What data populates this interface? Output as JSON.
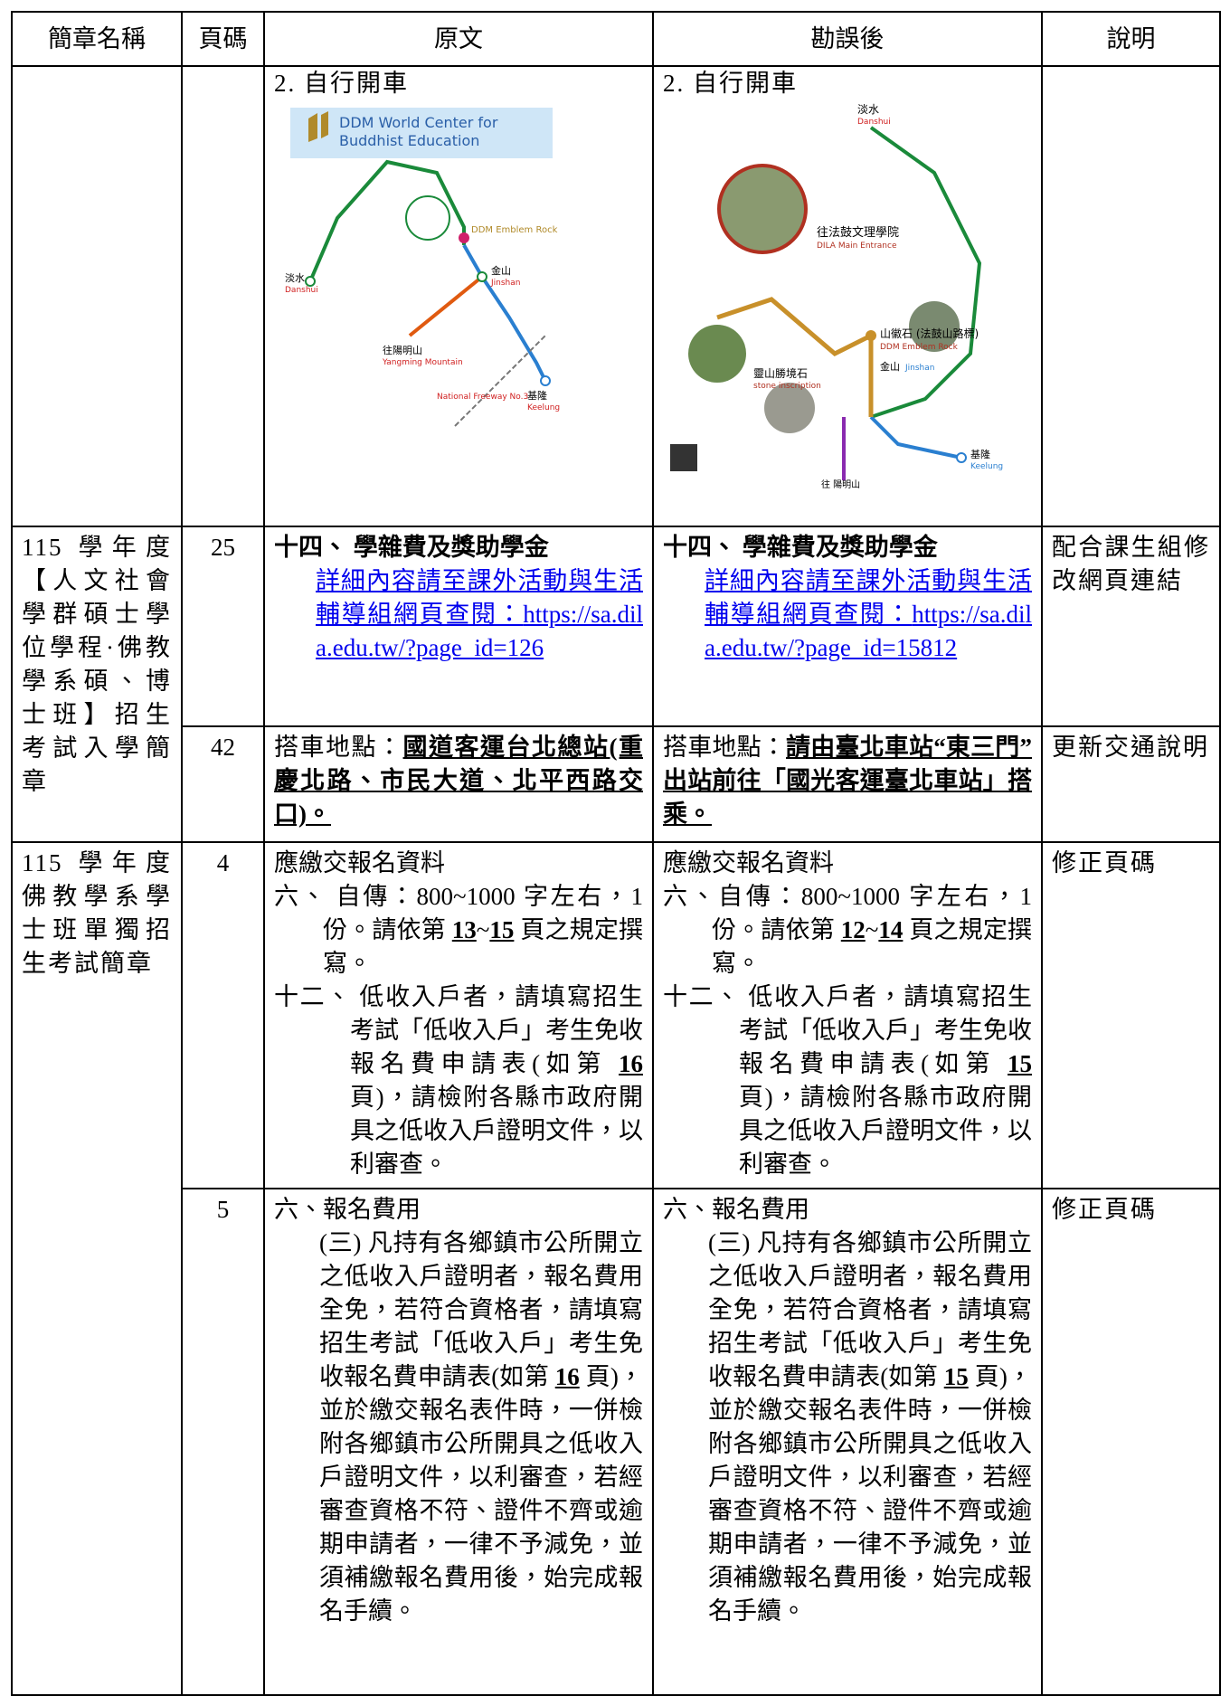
{
  "table": {
    "header": [
      "簡章名稱",
      "頁碼",
      "原文",
      "勘誤後",
      "說明"
    ],
    "rows": [
      {
        "original": {
          "heading": "2. 自行開車",
          "map": {
            "title": [
              "DDM World Center for",
              "Buddhist Education"
            ],
            "labels": [
              "淡水",
              "Danshui",
              "金山",
              "Jinshan",
              "基隆",
              "Keelung",
              "往陽明山",
              "Yangming Mountain",
              "DDM Emblem Rock",
              "National Freeway No.3"
            ]
          }
        },
        "revised": {
          "heading": "2. 自行開車",
          "map": {
            "labels": [
              "淡水",
              "Danshui",
              "往法鼓文理學院",
              "DILA Main Entrance",
              "山徽石 (法鼓山路標)",
              "DDM Emblem Rock",
              "金山",
              "Jinshan",
              "靈山勝境石",
              "stone inscription",
              "基隆",
              "Keelung",
              "往 陽明山"
            ]
          }
        }
      },
      {
        "chapter": "115 學年度【人文社會學群碩士學位學程·佛教學系碩、博士班】招生考試入學簡章",
        "page": "25",
        "original": {
          "heading": "十四、 學雜費及獎助學金",
          "link_text": "詳細內容請至課外活動與生活輔導組網頁查閱：",
          "url": "https://sa.dila.edu.tw/?page_id=126"
        },
        "revised": {
          "heading": "十四、 學雜費及獎助學金",
          "link_text": "詳細內容請至課外活動與生活輔導組網頁查閱：",
          "url": "https://sa.dila.edu.tw/?page_id=15812"
        },
        "note": "配合課生組修改網頁連結"
      },
      {
        "page": "42",
        "original": {
          "parts": [
            "搭車地點：",
            "國道客運台北總站(重慶北路、市民大道、北平西路交口)。"
          ]
        },
        "revised": {
          "parts": [
            "搭車地點：",
            "請由臺北車站“東三門”出站前往「國光客運臺北車站」搭乘。"
          ]
        },
        "note": "更新交通說明"
      },
      {
        "chapter": "115 學年度佛教學系學士班單獨招生考試簡章",
        "page": "4",
        "original": {
          "heading": "應繳交報名資料",
          "item1": [
            "六、",
            "自傳：800~1000 字左右，1 份。請依第 ",
            "13",
            "~",
            "15",
            " 頁之規定撰寫。"
          ],
          "item2": [
            "十二、",
            "低收入戶者，請填寫招生考試「低收入戶」考生免收報名費申請表(如第 ",
            "16",
            " 頁)，請檢附各縣市政府開具之低收入戶證明文件，以利審查。"
          ]
        },
        "revised": {
          "heading": "應繳交報名資料",
          "item1": [
            "六、",
            "自傳：800~1000 字左右，1 份。請依第 ",
            "12",
            "~",
            "14",
            " 頁之規定撰寫。"
          ],
          "item2": [
            "十二、",
            "低收入戶者，請填寫招生考試「低收入戶」考生免收報名費申請表(如第 ",
            "15",
            " 頁)，請檢附各縣市政府開具之低收入戶證明文件，以利審查。"
          ]
        },
        "note": "修正頁碼"
      },
      {
        "page": "5",
        "original": {
          "heading": "六、報名費用",
          "parts": [
            "(三) 凡持有各鄉鎮市公所開立之低收入戶證明者，報名費用全免，若符合資格者，請填寫招生考試「低收入戶」考生免收報名費申請表(如第 ",
            "16",
            " 頁)，並於繳交報名表件時，一併檢附各鄉鎮市公所開具之低收入戶證明文件，以利審查，若經審查資格不符、證件不齊或逾期申請者，一律不予減免，並須補繳報名費用後，始完成報名手續。"
          ]
        },
        "revised": {
          "heading": "六、報名費用",
          "parts": [
            "(三) 凡持有各鄉鎮市公所開立之低收入戶證明者，報名費用全免，若符合資格者，請填寫招生考試「低收入戶」考生免收報名費申請表(如第 ",
            "15",
            " 頁)，並於繳交報名表件時，一併檢附各鄉鎮市公所開具之低收入戶證明文件，以利審查，若經審查資格不符、證件不齊或逾期申請者，一律不予減免，並須補繳報名費用後，始完成報名手續。"
          ]
        },
        "note": "修正頁碼"
      }
    ]
  }
}
